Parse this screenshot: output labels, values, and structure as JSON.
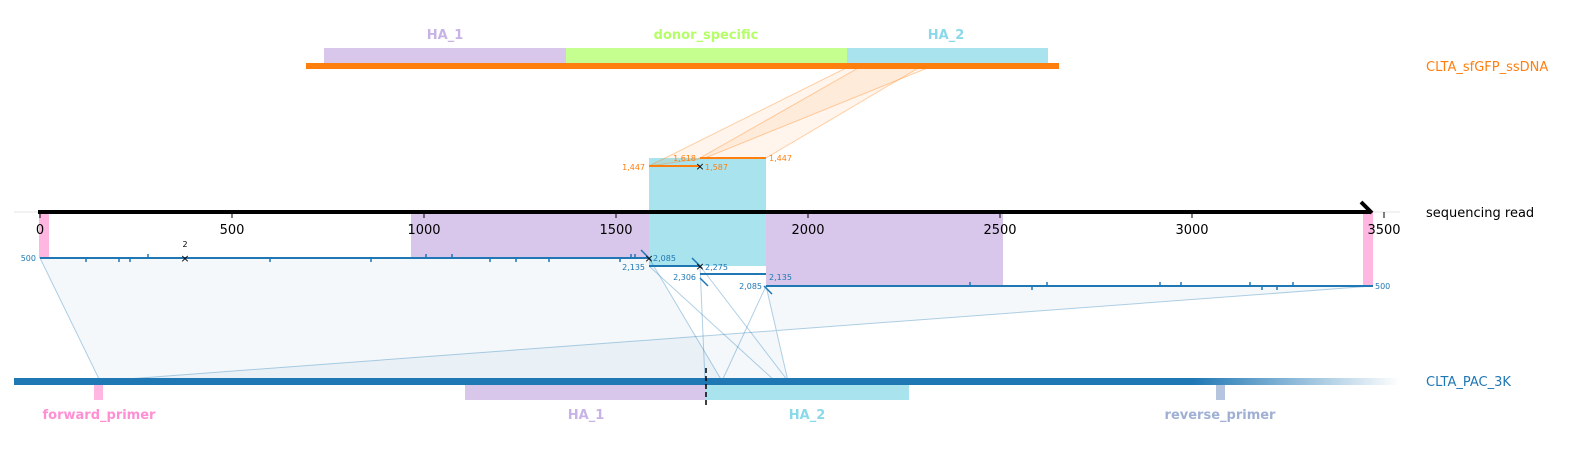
{
  "colors": {
    "donor": "#ff7f0e",
    "target": "#1f77b4",
    "read": "#000000",
    "ha1": "#d8c6eb",
    "donor_specific": "#c5ff8f",
    "ha2": "#a8e3ee",
    "primer_forward": "#ffb6e1",
    "primer_reverse": "#b5c4df"
  },
  "donor": {
    "name": "CLTA_sfGFP_ssDNA",
    "features": [
      {
        "label": "HA_1",
        "color": "#c7b3e5"
      },
      {
        "label": "donor_specific",
        "color": "#b4ff66"
      },
      {
        "label": "HA_2",
        "color": "#8ad9ea"
      }
    ]
  },
  "read": {
    "name": "sequencing read",
    "ticks": [
      "0",
      "500",
      "1000",
      "1500",
      "2000",
      "2500",
      "3000",
      "3500"
    ],
    "axis_range": [
      0,
      3500
    ]
  },
  "target": {
    "name": "CLTA_PAC_3K",
    "features": [
      {
        "label": "forward_primer",
        "color": "#ff8fd3"
      },
      {
        "label": "HA_1",
        "color": "#c7b3e5"
      },
      {
        "label": "HA_2",
        "color": "#8ad9ea"
      },
      {
        "label": "reverse_primer",
        "color": "#9fb0d4"
      }
    ]
  },
  "alignment_numbers": {
    "donor": [
      "1,447",
      "1,618",
      "1,587",
      "1,447"
    ],
    "target_left": [
      "500",
      "2",
      "2,085",
      "2,135"
    ],
    "target_mid": [
      "2,275",
      "2,306"
    ],
    "target_right": [
      "2,085",
      "2,135",
      "500"
    ]
  }
}
